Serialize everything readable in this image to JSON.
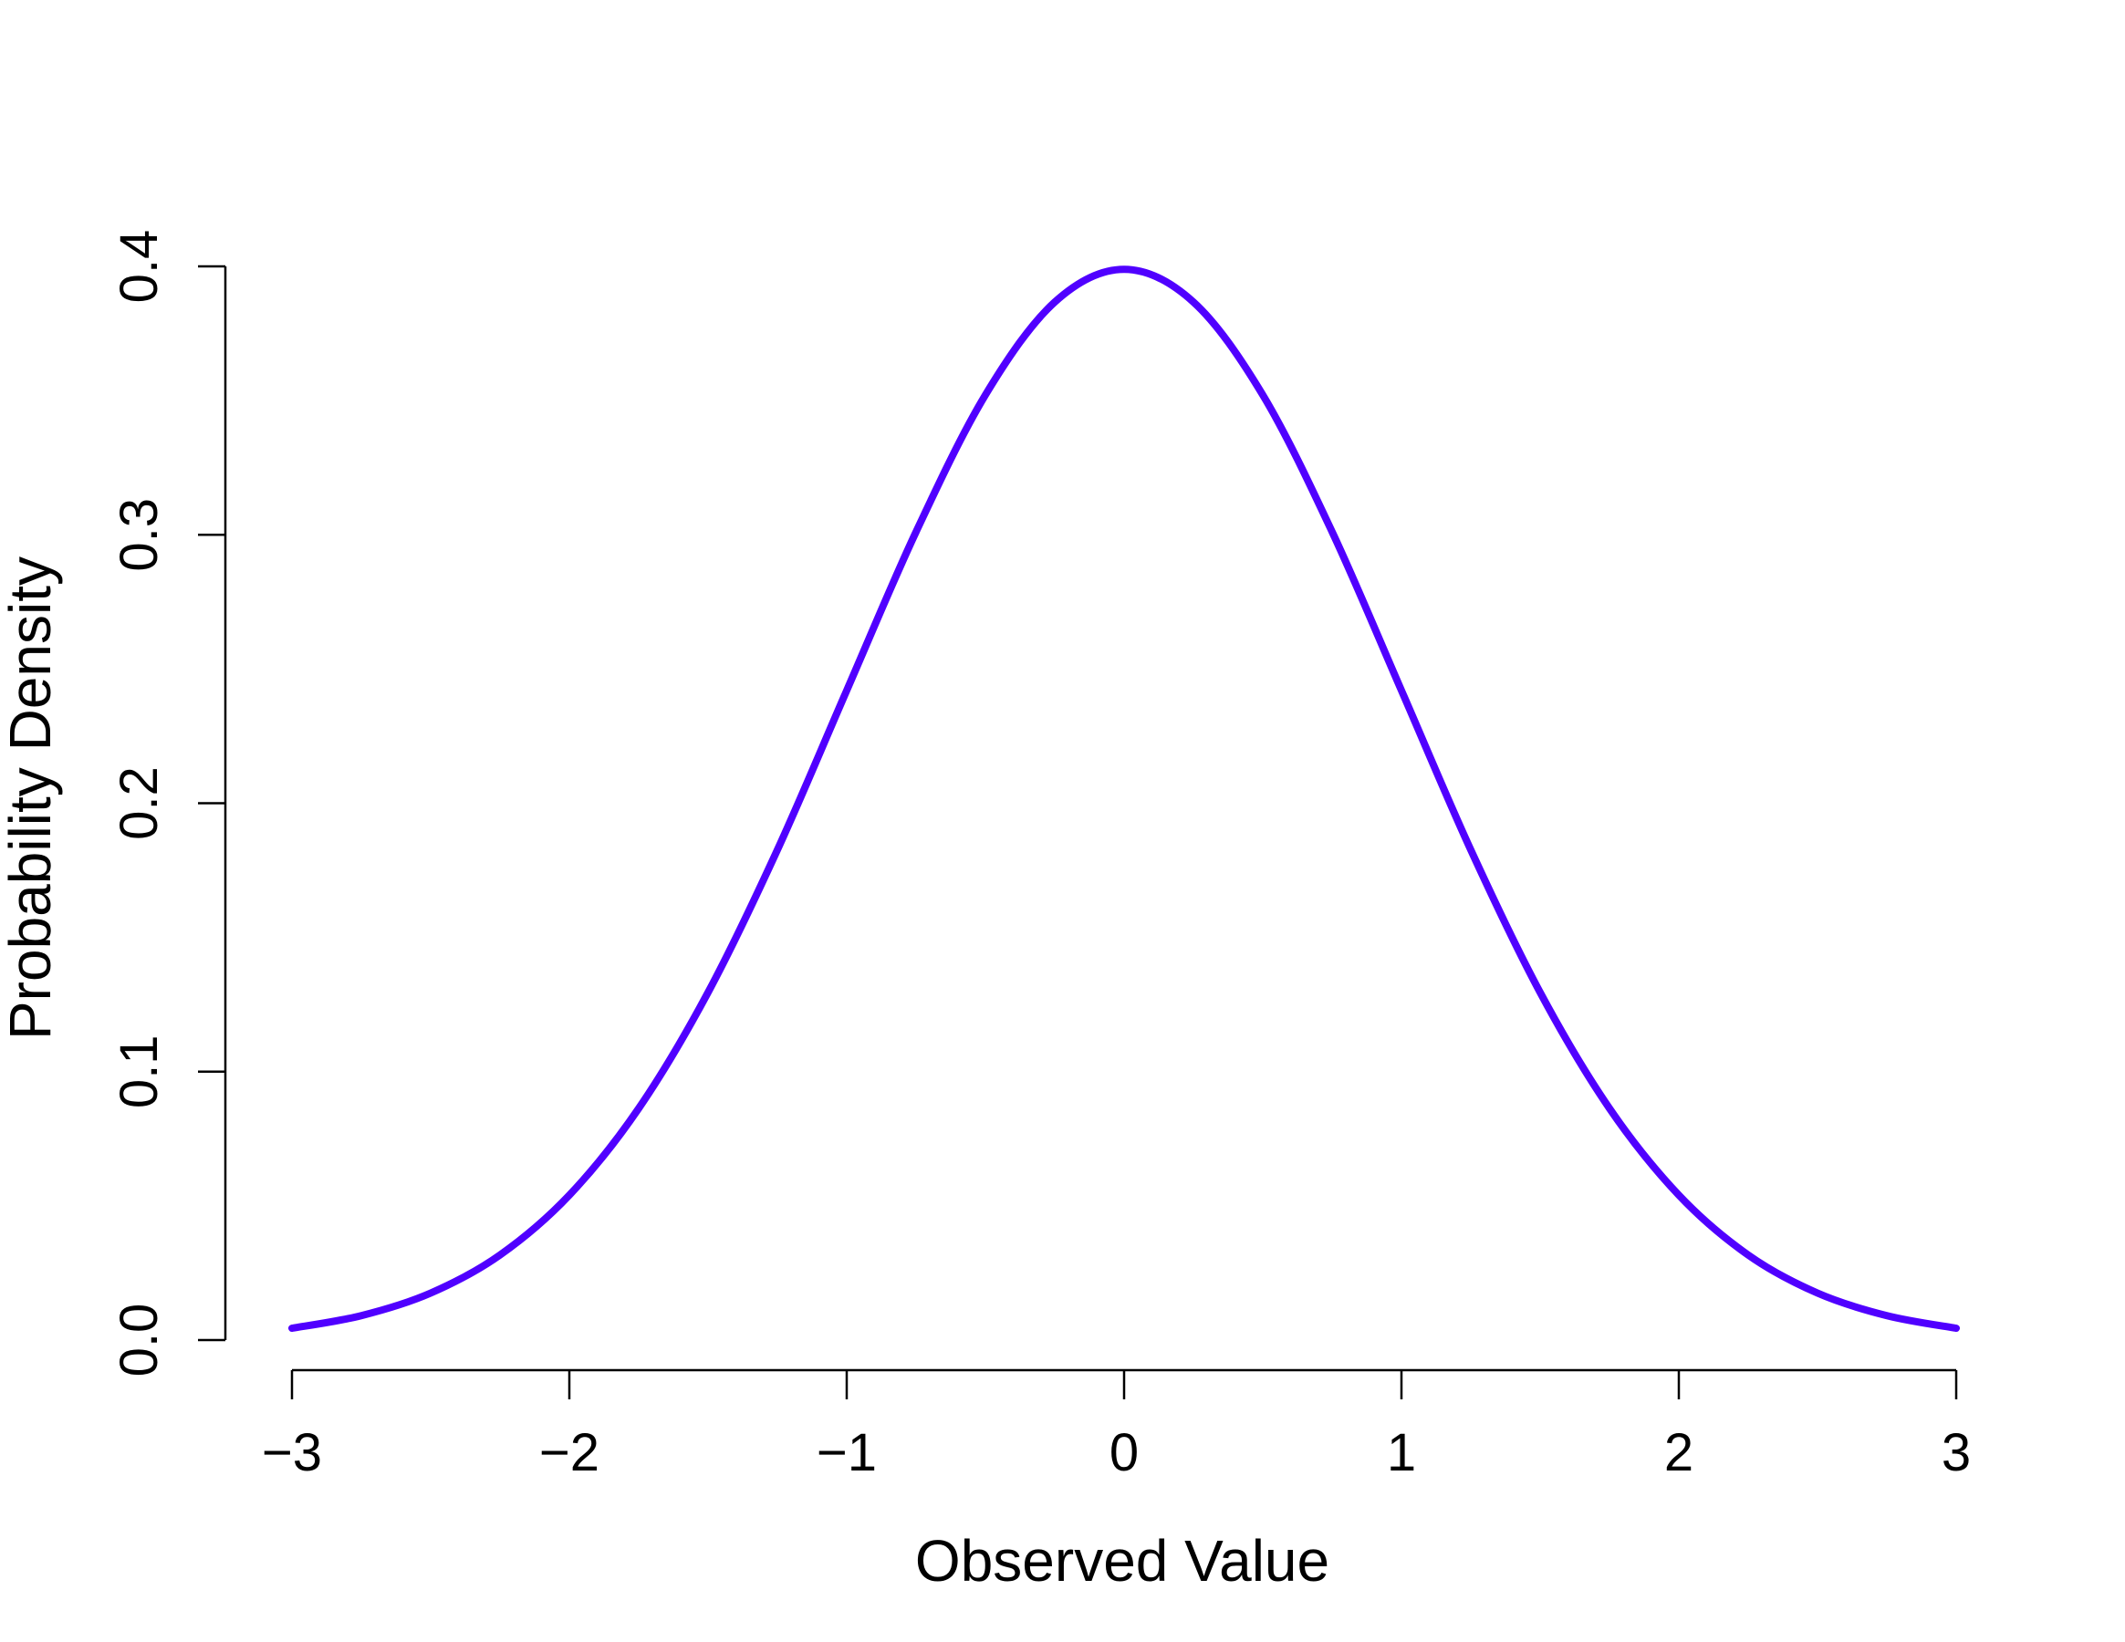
{
  "chart_data": {
    "type": "line",
    "title": "",
    "xlabel": "Observed Value",
    "ylabel": "Probability Density",
    "xlim": [
      -3,
      3
    ],
    "ylim": [
      0,
      0.4
    ],
    "x_ticks": [
      -3,
      -2,
      -1,
      0,
      1,
      2,
      3
    ],
    "x_tick_labels": [
      "−3",
      "−2",
      "−1",
      "0",
      "1",
      "2",
      "3"
    ],
    "y_ticks": [
      0,
      0.1,
      0.2,
      0.3,
      0.4
    ],
    "y_tick_labels": [
      "0.0",
      "0.1",
      "0.2",
      "0.3",
      "0.4"
    ],
    "grid": false,
    "legend": "none",
    "series": [
      {
        "color": "#5000ff",
        "x": [
          -3.0,
          -2.75,
          -2.5,
          -2.25,
          -2.0,
          -1.75,
          -1.5,
          -1.25,
          -1.0,
          -0.75,
          -0.5,
          -0.25,
          0.0,
          0.25,
          0.5,
          0.75,
          1.0,
          1.25,
          1.5,
          1.75,
          2.0,
          2.25,
          2.5,
          2.75,
          3.0
        ],
        "y": [
          0.0044,
          0.0091,
          0.0175,
          0.0317,
          0.054,
          0.0863,
          0.1295,
          0.1826,
          0.242,
          0.3011,
          0.3521,
          0.3867,
          0.3989,
          0.3867,
          0.3521,
          0.3011,
          0.242,
          0.1826,
          0.1295,
          0.0863,
          0.054,
          0.0317,
          0.0175,
          0.0091,
          0.0044
        ]
      }
    ]
  }
}
